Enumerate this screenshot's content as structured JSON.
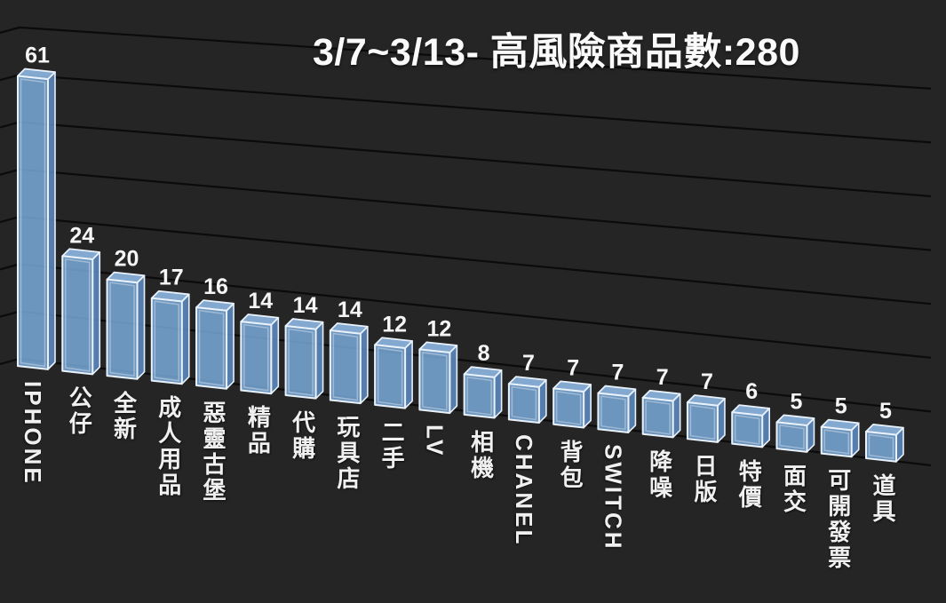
{
  "chart_data": {
    "type": "bar",
    "variant": "3d-column",
    "title": "3/7~3/13- 高風險商品數:280",
    "period": "3/7~3/13",
    "total_high_risk_items": 280,
    "categories": [
      "IPHONE",
      "公仔",
      "全新",
      "成人用品",
      "惡靈古堡",
      "精品",
      "代購",
      "玩具店",
      "二手",
      "LV",
      "相機",
      "CHANEL",
      "背包",
      "SWITCH",
      "降噪",
      "日版",
      "特價",
      "面交",
      "可開發票",
      "道具"
    ],
    "values": [
      61,
      24,
      20,
      17,
      16,
      14,
      14,
      14,
      12,
      12,
      8,
      7,
      7,
      7,
      7,
      7,
      6,
      5,
      5,
      5
    ],
    "xlabel": "",
    "ylabel": "",
    "ylim": [
      0,
      70
    ],
    "gridline_values": [
      70,
      60,
      50,
      40,
      30,
      20,
      10,
      0
    ],
    "grid": "on",
    "legend": "none",
    "value_labels": "on",
    "colors": {
      "background": "#252525",
      "gridline": "#0b0b0b",
      "bar_front": "#7fb3e6",
      "bar_top": "#8cb4de",
      "bar_side": "#5e8ec7",
      "bar_stroke": "#e9f1fa",
      "bar_inner_highlight": "rgba(255,255,255,0.35)",
      "category_text": "#f0f0f0",
      "value_text": "#f5f5f5",
      "title_text": "#fafafa"
    }
  }
}
